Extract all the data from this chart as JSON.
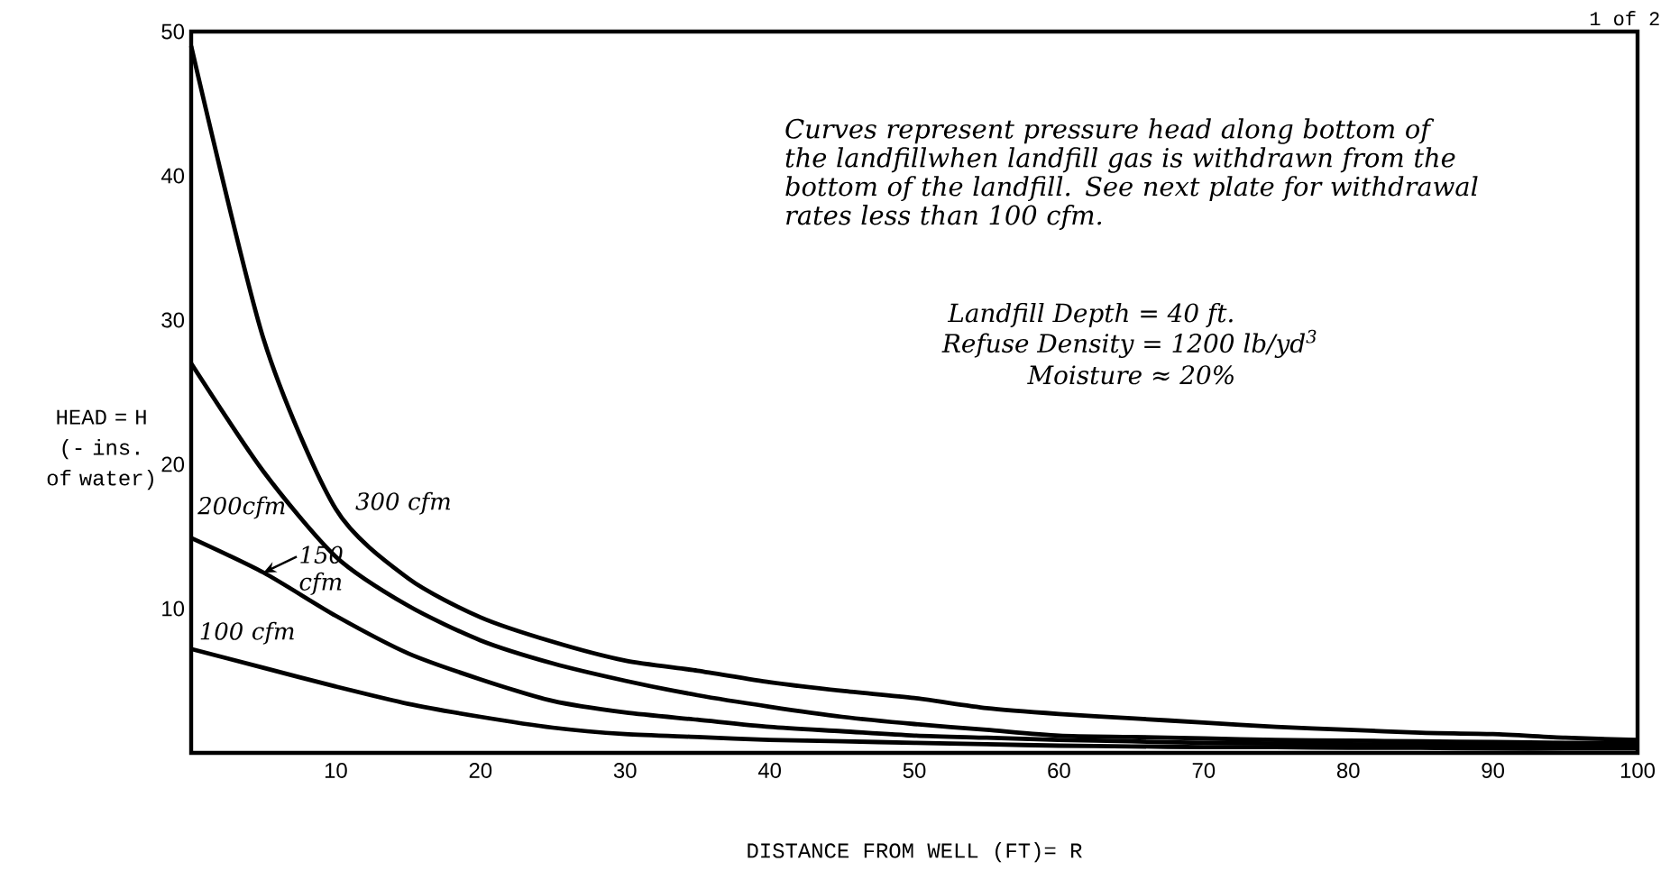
{
  "chart_data": {
    "type": "line",
    "xlabel": "DISTANCE FROM WELL (FT)= R",
    "ylabel": "HEAD = H (- ins. of water)",
    "x": [
      0,
      5,
      10,
      15,
      20,
      25,
      30,
      35,
      40,
      45,
      50,
      55,
      60,
      65,
      70,
      75,
      80,
      85,
      90,
      95,
      100
    ],
    "series": [
      {
        "name": "300 cfm",
        "color": "#000000",
        "values": [
          49,
          28.7,
          16.9,
          12.1,
          9.4,
          7.7,
          6.4,
          5.7,
          4.9,
          4.3,
          3.8,
          3.1,
          2.7,
          2.4,
          2.1,
          1.8,
          1.6,
          1.4,
          1.3,
          1.05,
          0.9
        ]
      },
      {
        "name": "200cfm",
        "color": "#000000",
        "values": [
          27,
          19.5,
          13.6,
          10.2,
          7.8,
          6.2,
          5.0,
          4.0,
          3.2,
          2.5,
          2.0,
          1.6,
          1.2,
          1.1,
          1.0,
          0.9,
          0.85,
          0.8,
          0.75,
          0.7,
          0.7
        ]
      },
      {
        "name": "150 cfm",
        "color": "#000000",
        "values": [
          14.9,
          12.5,
          9.5,
          6.9,
          5.1,
          3.6,
          2.8,
          2.3,
          1.8,
          1.5,
          1.2,
          1.05,
          0.9,
          0.8,
          0.7,
          0.65,
          0.6,
          0.55,
          0.55,
          0.5,
          0.5
        ]
      },
      {
        "name": "100 cfm",
        "color": "#000000",
        "values": [
          7.2,
          5.9,
          4.6,
          3.4,
          2.5,
          1.75,
          1.3,
          1.1,
          0.9,
          0.8,
          0.7,
          0.6,
          0.5,
          0.45,
          0.4,
          0.4,
          0.35,
          0.35,
          0.3,
          0.3,
          0.3
        ]
      }
    ],
    "xlim": [
      0,
      100
    ],
    "ylim": [
      0,
      50
    ],
    "xticks": [
      10,
      20,
      30,
      40,
      50,
      60,
      70,
      80,
      90,
      100
    ],
    "yticks": [
      10,
      20,
      30,
      40,
      50
    ],
    "annotations": [
      "Curves represent pressure head along bottom of the landfillwhen landfill gas is withdrawn from the bottom of the landfill.  See next plate for withdrawal rates less than 100 cfm.",
      "Landfill Depth  =  40 ft.",
      "Refuse Density  =  1200 lb/yd$^{3}$",
      "Moisture  ≈  20%",
      "1 of 2"
    ]
  }
}
